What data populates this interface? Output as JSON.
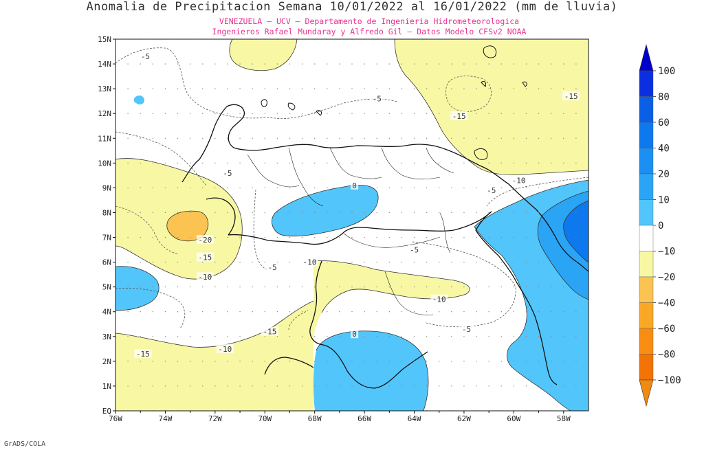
{
  "title": "Anomalia de Precipitacion Semana 10/01/2022 al 16/01/2022 (mm de lluvia)",
  "subtitle_1": "VENEZUELA – UCV – Departamento de Ingenieria Hidrometeorologica",
  "subtitle_2": "Ingenieros Rafael Mundaray y Alfredo Gil – Datos Modelo CFSv2 NOAA",
  "credit": "GrADS/COLA",
  "map": {
    "lon_range": [
      -76,
      -57
    ],
    "lat_range": [
      0,
      15
    ],
    "lat_labels": [
      "EQ",
      "1N",
      "2N",
      "3N",
      "4N",
      "5N",
      "6N",
      "7N",
      "8N",
      "9N",
      "10N",
      "11N",
      "12N",
      "13N",
      "14N",
      "15N"
    ],
    "lon_labels": [
      "76W",
      "74W",
      "72W",
      "70W",
      "68W",
      "66W",
      "64W",
      "62W",
      "60W",
      "58W"
    ],
    "contour_labels": [
      {
        "text": "-5",
        "lon": -74.8,
        "lat": 14.3
      },
      {
        "text": "-5",
        "lon": -65.5,
        "lat": 12.6
      },
      {
        "text": "-15",
        "lon": -62.2,
        "lat": 11.9
      },
      {
        "text": "-15",
        "lon": -57.7,
        "lat": 12.7
      },
      {
        "text": "-5",
        "lon": -71.5,
        "lat": 9.6
      },
      {
        "text": "0",
        "lon": -66.4,
        "lat": 9.1
      },
      {
        "text": "-10",
        "lon": -59.8,
        "lat": 9.3
      },
      {
        "text": "-5",
        "lon": -60.9,
        "lat": 8.9
      },
      {
        "text": "-20",
        "lon": -72.4,
        "lat": 6.9
      },
      {
        "text": "-15",
        "lon": -72.4,
        "lat": 6.2
      },
      {
        "text": "-10",
        "lon": -72.4,
        "lat": 5.4
      },
      {
        "text": "-5",
        "lon": -64.0,
        "lat": 6.5
      },
      {
        "text": "-10",
        "lon": -68.2,
        "lat": 6.0
      },
      {
        "text": "-5",
        "lon": -69.7,
        "lat": 5.8
      },
      {
        "text": "-10",
        "lon": -63.0,
        "lat": 4.5
      },
      {
        "text": "-5",
        "lon": -61.9,
        "lat": 3.3
      },
      {
        "text": "-15",
        "lon": -69.8,
        "lat": 3.2
      },
      {
        "text": "0",
        "lon": -66.4,
        "lat": 3.1
      },
      {
        "text": "-10",
        "lon": -71.6,
        "lat": 2.5
      },
      {
        "text": "-15",
        "lon": -74.9,
        "lat": 2.3
      }
    ]
  },
  "colorbar": {
    "labels": [
      "100",
      "80",
      "60",
      "40",
      "20",
      "10",
      "0",
      "−10",
      "−20",
      "−40",
      "−60",
      "−80",
      "−100"
    ],
    "colors": [
      "#0b2fe0",
      "#0a5fe6",
      "#0e78ee",
      "#1b8ff2",
      "#2aa4f5",
      "#52c5fa",
      "#ffffff",
      "#f8f7a4",
      "#fbc352",
      "#f9a826",
      "#f88d14",
      "#f37306",
      "#f36306"
    ],
    "top_arrow_color": "#0000cc",
    "bottom_arrow_color": "#f08a10"
  },
  "colors": {
    "dry": "#f8f7a4",
    "very_dry": "#fbc352",
    "wet": "#52c5fa",
    "wetter": "#2aa4f5",
    "wettest": "#0e78ee"
  }
}
